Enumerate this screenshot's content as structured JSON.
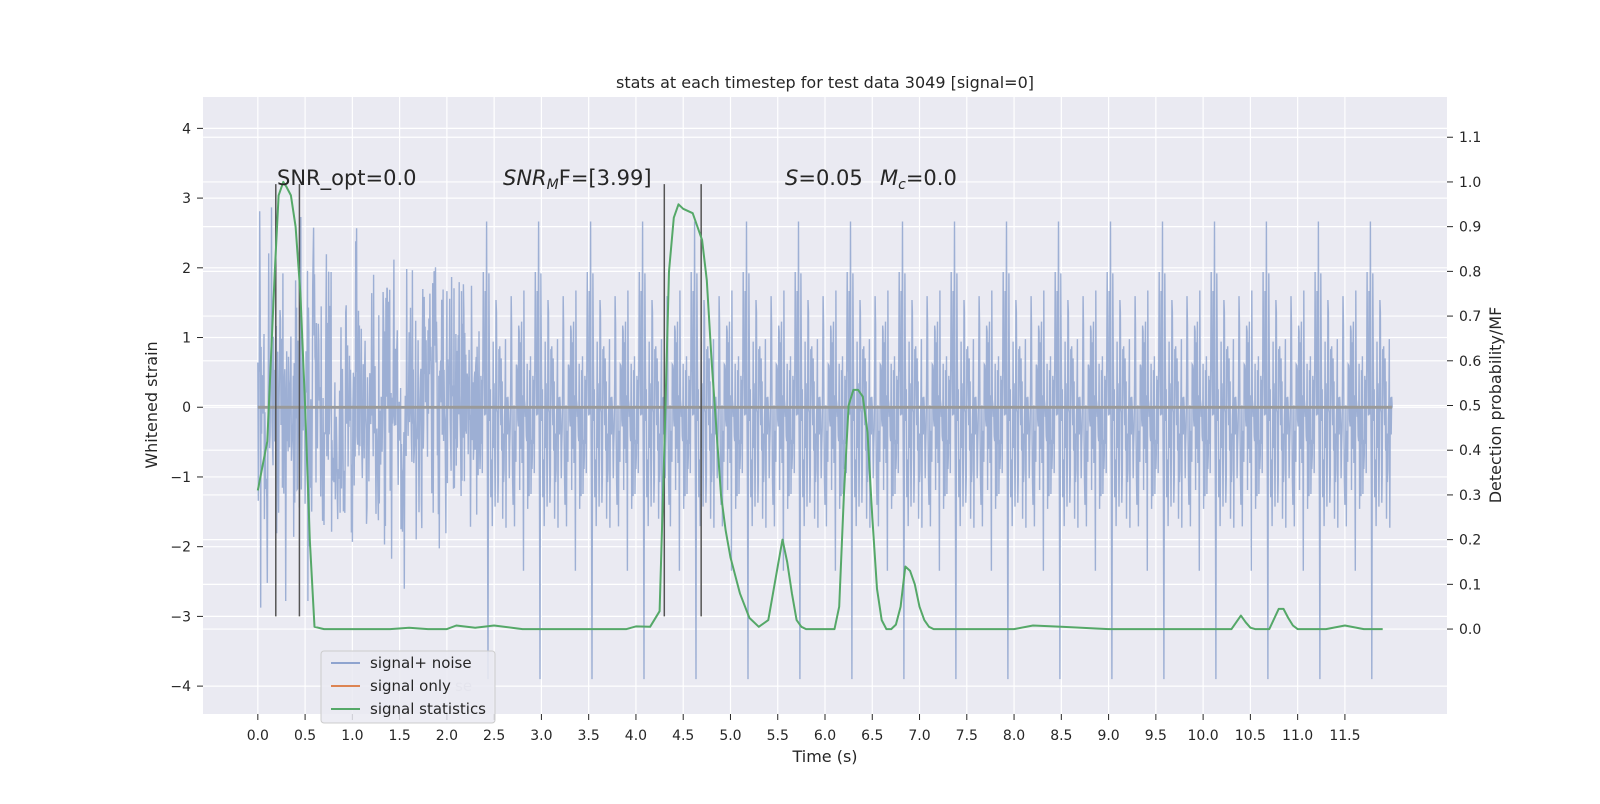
{
  "chart_data": {
    "type": "line",
    "title": "stats at each timestep for test data 3049 [signal=0]",
    "xlabel": "Time (s)",
    "ylabel": "Whitened strain",
    "y2label": "Detection probability/MF",
    "xlim": [
      -0.58,
      12.58
    ],
    "ylim": [
      -4.4,
      4.45
    ],
    "y2lim": [
      -0.19,
      1.19
    ],
    "x_ticks": [
      0,
      0.5,
      1,
      1.5,
      2,
      2.5,
      3,
      3.5,
      4,
      4.5,
      5,
      5.5,
      6,
      6.5,
      7,
      7.5,
      8,
      8.5,
      9,
      9.5,
      10,
      10.5,
      11,
      11.5
    ],
    "x_tick_labels": [
      "0.0",
      "0.5",
      "1.0",
      "1.5",
      "2.0",
      "2.5",
      "3.0",
      "3.5",
      "4.0",
      "4.5",
      "5.0",
      "5.5",
      "6.0",
      "6.5",
      "7.0",
      "7.5",
      "8.0",
      "8.5",
      "9.0",
      "9.5",
      "10.0",
      "10.5",
      "11.0",
      "11.5"
    ],
    "y_ticks": [
      -4,
      -3,
      -2,
      -1,
      0,
      1,
      2,
      3,
      4
    ],
    "y_tick_labels": [
      "−4",
      "−3",
      "−2",
      "−1",
      "0",
      "1",
      "2",
      "3",
      "4"
    ],
    "y2_ticks": [
      0,
      0.1,
      0.2,
      0.3,
      0.4,
      0.5,
      0.6,
      0.7,
      0.8,
      0.9,
      1.0,
      1.1
    ],
    "y2_tick_labels": [
      "0.0",
      "0.1",
      "0.2",
      "0.3",
      "0.4",
      "0.5",
      "0.6",
      "0.7",
      "0.8",
      "0.9",
      "1.0",
      "1.1"
    ],
    "grid": true,
    "legend_position": "lower-left",
    "series": [
      {
        "name": "signal+ noise",
        "axis": "left",
        "color": "#8fa4cf",
        "style": "dense noise, approx. gaussian, |peak| ≈ 4.1",
        "x_range": [
          0,
          12
        ],
        "noise_amplitude_sigma": 1.0
      },
      {
        "name": "signal only",
        "axis": "left",
        "color": "#dd8452",
        "x": [
          0,
          12
        ],
        "y": [
          0,
          0
        ]
      },
      {
        "name": "signal statistics",
        "axis": "right",
        "color": "#55a868",
        "x": [
          0.0,
          0.1,
          0.18,
          0.22,
          0.27,
          0.3,
          0.35,
          0.4,
          0.45,
          0.5,
          0.55,
          0.6,
          0.7,
          1.0,
          1.4,
          1.6,
          1.8,
          2.0,
          2.1,
          2.3,
          2.5,
          2.8,
          3.2,
          3.6,
          3.9,
          4.0,
          4.15,
          4.25,
          4.3,
          4.35,
          4.4,
          4.45,
          4.5,
          4.6,
          4.7,
          4.75,
          4.8,
          4.85,
          4.9,
          4.95,
          5.0,
          5.1,
          5.2,
          5.3,
          5.4,
          5.5,
          5.55,
          5.6,
          5.65,
          5.7,
          5.75,
          5.8,
          5.9,
          6.0,
          6.1,
          6.15,
          6.2,
          6.25,
          6.3,
          6.35,
          6.4,
          6.45,
          6.5,
          6.55,
          6.6,
          6.65,
          6.7,
          6.75,
          6.8,
          6.85,
          6.9,
          6.95,
          7.0,
          7.05,
          7.1,
          7.15,
          7.2,
          7.3,
          7.5,
          8.0,
          8.2,
          8.5,
          9.0,
          10.0,
          10.3,
          10.4,
          10.45,
          10.5,
          10.55,
          10.6,
          10.7,
          10.8,
          10.85,
          10.9,
          10.95,
          11.0,
          11.1,
          11.3,
          11.5,
          11.7,
          11.9
        ],
        "y": [
          0.31,
          0.42,
          0.8,
          0.97,
          1.0,
          0.99,
          0.97,
          0.9,
          0.75,
          0.5,
          0.2,
          0.005,
          0.0,
          0.0,
          0.0,
          0.003,
          0.0,
          0.0,
          0.008,
          0.003,
          0.008,
          0.0,
          0.0,
          0.0,
          0.0,
          0.006,
          0.005,
          0.04,
          0.4,
          0.8,
          0.92,
          0.95,
          0.94,
          0.93,
          0.87,
          0.78,
          0.6,
          0.45,
          0.3,
          0.22,
          0.16,
          0.08,
          0.025,
          0.005,
          0.02,
          0.14,
          0.2,
          0.15,
          0.08,
          0.02,
          0.005,
          0.0,
          0.0,
          0.0,
          0.0,
          0.05,
          0.3,
          0.5,
          0.535,
          0.535,
          0.52,
          0.44,
          0.25,
          0.09,
          0.02,
          0.0,
          0.0,
          0.01,
          0.05,
          0.14,
          0.13,
          0.1,
          0.05,
          0.02,
          0.005,
          0.0,
          0.0,
          0.0,
          0.0,
          0.0,
          0.008,
          0.005,
          0.0,
          0.0,
          0.0,
          0.03,
          0.015,
          0.003,
          0.0,
          0.0,
          0.0,
          0.045,
          0.045,
          0.025,
          0.008,
          0.0,
          0.0,
          0.0,
          0.008,
          0.0,
          0.0
        ]
      }
    ],
    "vlines": [
      0.19,
      0.44,
      4.3,
      4.69
    ],
    "vline_color": "#555555",
    "vline_range": [
      -3,
      3.2
    ],
    "annotations": {
      "snr_opt": "SNR_opt=0.0",
      "snr_mf_main": "SNR",
      "snr_mf_sub": "M",
      "snr_mf_rest": "F=[3.99]",
      "s_main": "S",
      "s_rest": "=0.05",
      "mc_main": "M",
      "mc_sub": "c",
      "mc_rest": "=0.0"
    },
    "legend_ghost_text": "se",
    "colors": {
      "plot_bg": "#eaeaf2",
      "grid": "#ffffff"
    }
  }
}
